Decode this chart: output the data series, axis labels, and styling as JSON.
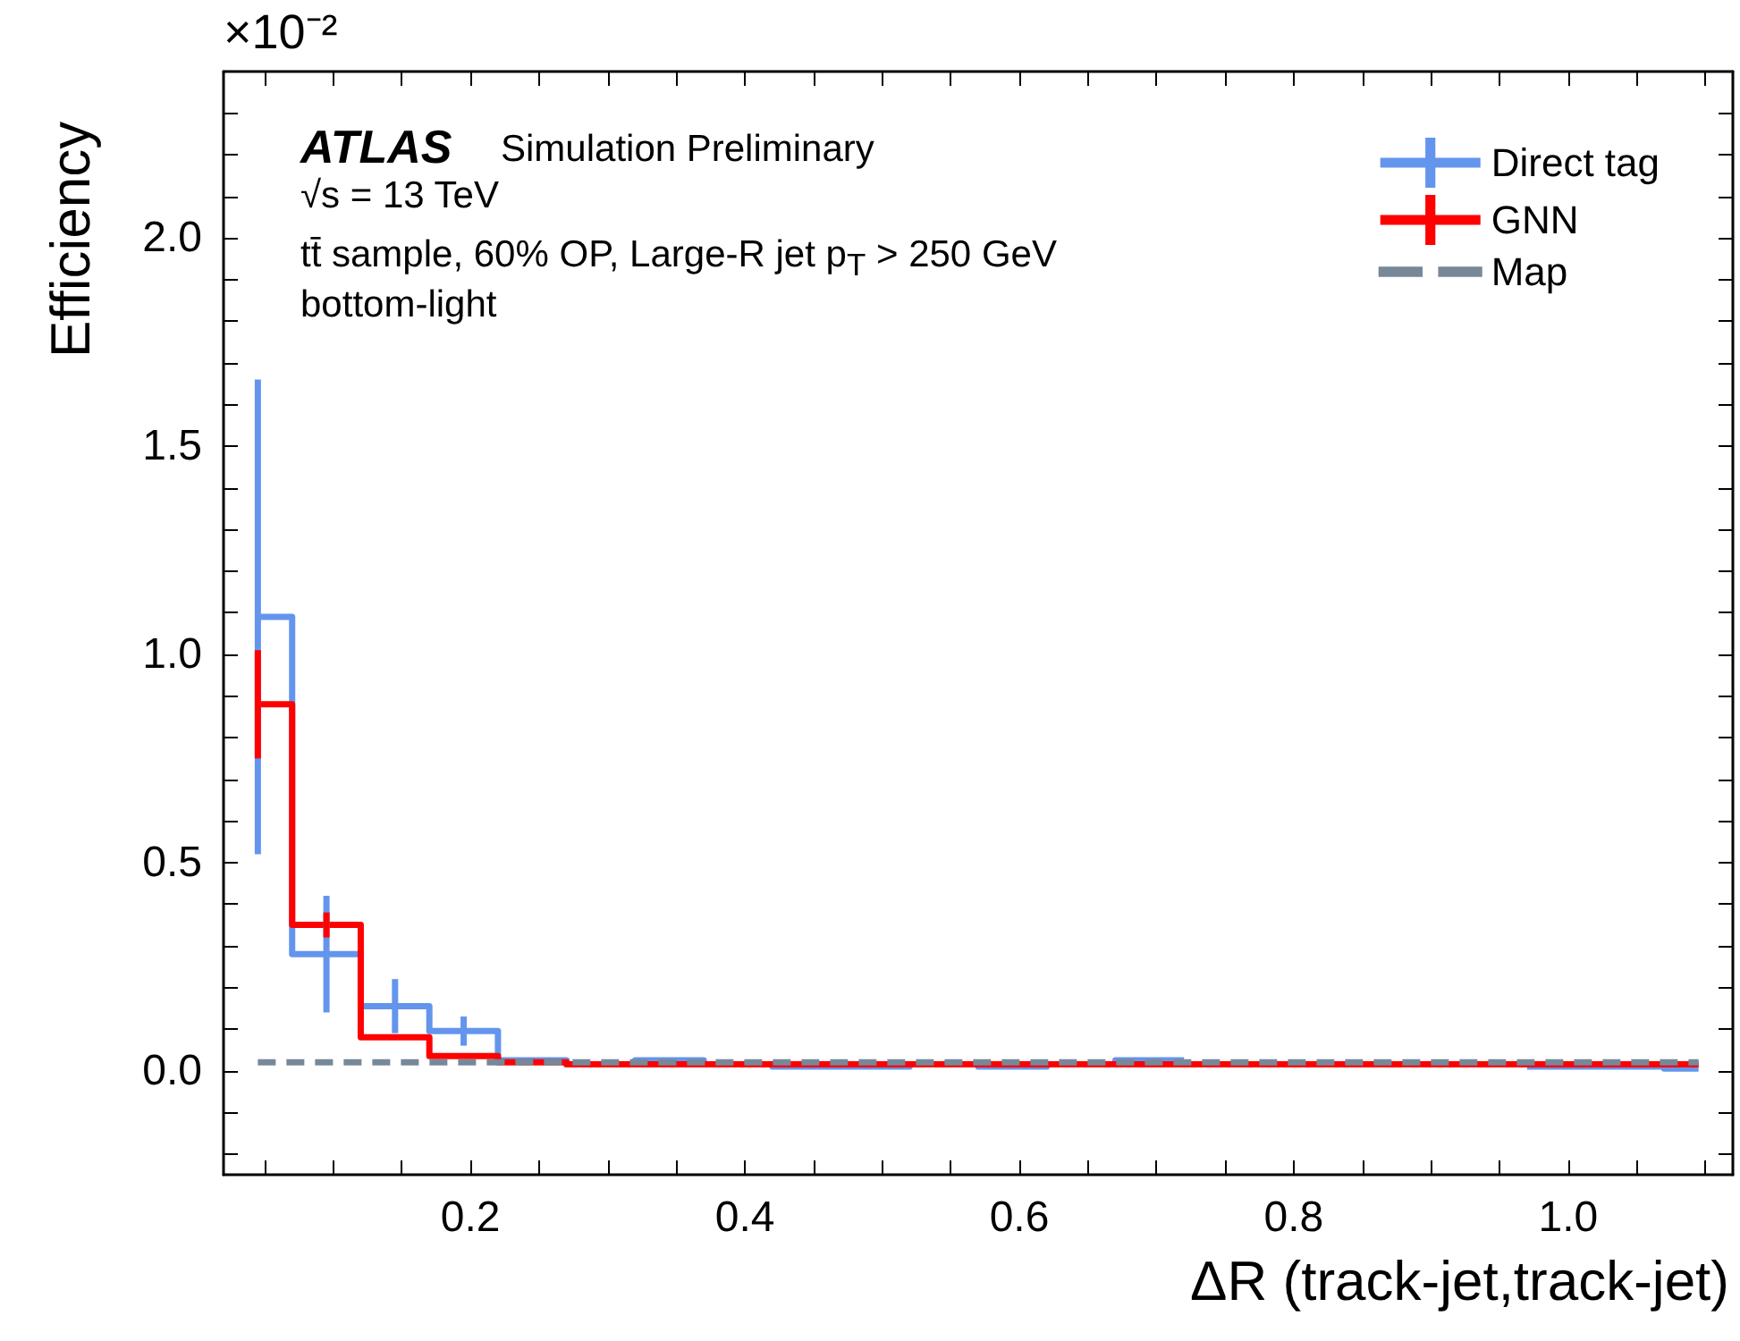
{
  "chart_data": {
    "type": "step",
    "xlabel": "ΔR (track-jet,track-jet)",
    "ylabel": "Efficiency",
    "annotations": [
      "×10⁻²",
      "ATLAS",
      "Simulation Preliminary",
      "√s = 13 TeV",
      "tt̄ sample, 60% OP, Large-R jet p$_{T}$ > 250 GeV",
      "bottom-light"
    ],
    "x": [
      0.045,
      0.095,
      0.145,
      0.195,
      0.245,
      0.295,
      0.345,
      0.395,
      0.445,
      0.495,
      0.545,
      0.595,
      0.645,
      0.695,
      0.745,
      0.795,
      0.845,
      0.895,
      0.945,
      0.995,
      1.045,
      1.095
    ],
    "series": [
      {
        "name": "Direct tag",
        "color": "#6495ed",
        "values": [
          1.09,
          0.28,
          0.155,
          0.095,
          0.025,
          0.015,
          0.025,
          0.015,
          0.01,
          0.01,
          0.015,
          0.01,
          0.015,
          0.025,
          null,
          null,
          null,
          null,
          null,
          0.01,
          0.01,
          0.005
        ],
        "errors": [
          [
            0.52,
            1.66
          ],
          [
            0.14,
            0.42
          ],
          [
            0.09,
            0.22
          ],
          [
            0.06,
            0.13
          ],
          null,
          null,
          null,
          null,
          null,
          null,
          null,
          null,
          null,
          null,
          null,
          null,
          null,
          null,
          null,
          null,
          null,
          null
        ]
      },
      {
        "name": "GNN",
        "color": "#ff0000",
        "values": [
          0.88,
          0.35,
          0.08,
          0.035,
          0.02,
          0.015,
          0.015,
          0.015,
          0.015,
          0.015,
          0.015,
          0.015,
          0.015,
          0.015,
          0.015,
          0.015,
          0.015,
          0.015,
          0.015,
          0.015,
          0.015,
          0.015
        ],
        "errors": [
          [
            0.75,
            1.01
          ],
          [
            0.32,
            0.38
          ],
          null,
          null,
          null,
          null,
          null,
          null,
          null,
          null,
          null,
          null,
          null,
          null,
          null,
          null,
          null,
          null,
          null,
          null,
          null,
          null
        ]
      },
      {
        "name": "Map",
        "color": "#778899",
        "line_style": "dashed",
        "values": [
          0.02,
          0.02,
          0.02,
          0.02,
          0.02,
          0.02,
          0.02,
          0.02,
          0.02,
          0.02,
          0.02,
          0.02,
          0.02,
          0.02,
          0.02,
          0.02,
          0.02,
          0.02,
          0.02,
          0.02,
          0.02,
          0.02
        ]
      }
    ],
    "xlim": [
      0.02,
      1.12
    ],
    "xticks": [
      {
        "value": 0.05,
        "label": null
      },
      {
        "value": 0.1,
        "label": null
      },
      {
        "value": 0.15,
        "label": null
      },
      {
        "value": 0.2,
        "label": "0.2"
      },
      {
        "value": 0.25,
        "label": null
      },
      {
        "value": 0.3,
        "label": null
      },
      {
        "value": 0.35,
        "label": null
      },
      {
        "value": 0.4,
        "label": "0.4"
      },
      {
        "value": 0.45,
        "label": null
      },
      {
        "value": 0.5,
        "label": null
      },
      {
        "value": 0.55,
        "label": null
      },
      {
        "value": 0.6,
        "label": "0.6"
      },
      {
        "value": 0.65,
        "label": null
      },
      {
        "value": 0.7,
        "label": null
      },
      {
        "value": 0.75,
        "label": null
      },
      {
        "value": 0.8,
        "label": "0.8"
      },
      {
        "value": 0.85,
        "label": null
      },
      {
        "value": 0.9,
        "label": null
      },
      {
        "value": 0.95,
        "label": null
      },
      {
        "value": 1.0,
        "label": "1.0"
      },
      {
        "value": 1.05,
        "label": null
      },
      {
        "value": 1.1,
        "label": null
      }
    ],
    "ylim": [
      -0.25,
      2.4
    ],
    "yticks": [
      {
        "value": -0.2,
        "label": null
      },
      {
        "value": -0.1,
        "label": null
      },
      {
        "value": 0,
        "label": "0.0"
      },
      {
        "value": 0.1,
        "label": null
      },
      {
        "value": 0.2,
        "label": null
      },
      {
        "value": 0.3,
        "label": null
      },
      {
        "value": 0.4,
        "label": null
      },
      {
        "value": 0.5,
        "label": "0.5"
      },
      {
        "value": 0.6,
        "label": null
      },
      {
        "value": 0.7,
        "label": null
      },
      {
        "value": 0.8,
        "label": null
      },
      {
        "value": 0.9,
        "label": null
      },
      {
        "value": 1.0,
        "label": "1.0"
      },
      {
        "value": 1.1,
        "label": null
      },
      {
        "value": 1.2,
        "label": null
      },
      {
        "value": 1.3,
        "label": null
      },
      {
        "value": 1.4,
        "label": null
      },
      {
        "value": 1.5,
        "label": "1.5"
      },
      {
        "value": 1.6,
        "label": null
      },
      {
        "value": 1.7,
        "label": null
      },
      {
        "value": 1.8,
        "label": null
      },
      {
        "value": 1.9,
        "label": null
      },
      {
        "value": 2.0,
        "label": "2.0"
      },
      {
        "value": 2.1,
        "label": null
      },
      {
        "value": 2.2,
        "label": null
      },
      {
        "value": 2.3,
        "label": null
      }
    ],
    "grid": false,
    "legend": "top right",
    "marker": "none"
  }
}
